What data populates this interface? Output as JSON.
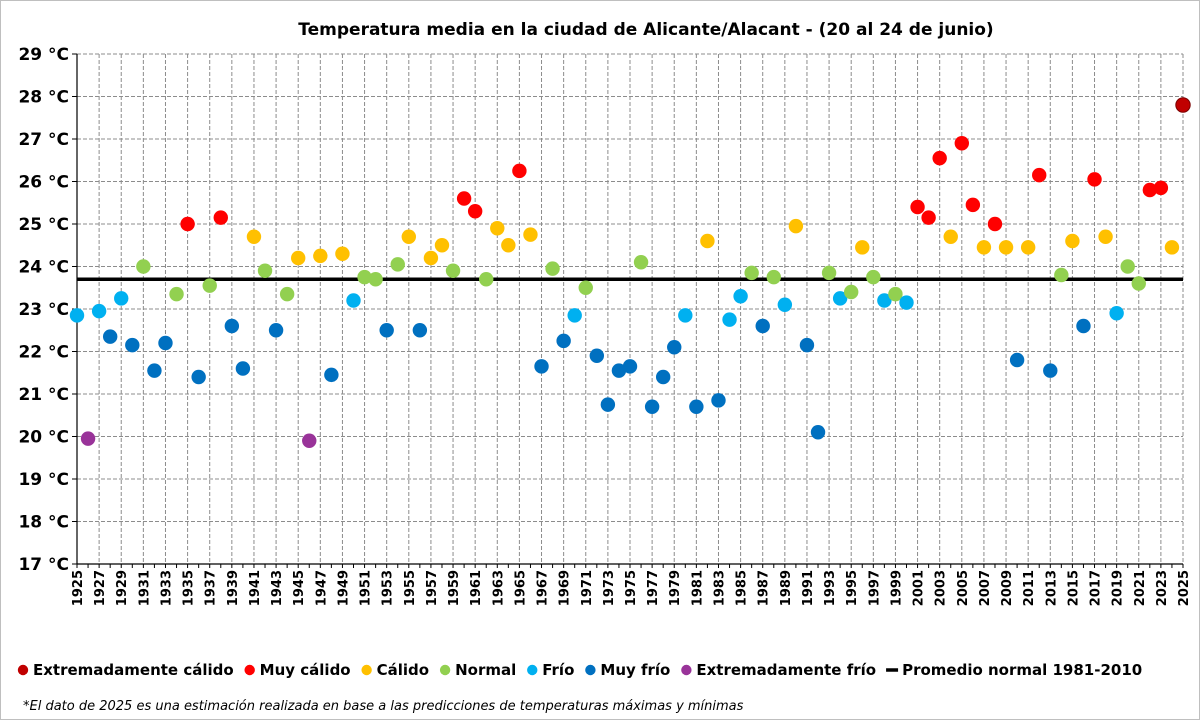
{
  "chart_data": {
    "type": "scatter",
    "title": "Temperatura media en la ciudad de Alicante/Alacant - (20 al 24 de junio)",
    "xlabel": "",
    "ylabel": "",
    "xlim": [
      1925,
      2025
    ],
    "ylim": [
      17,
      29
    ],
    "y_unit": "°C",
    "y_ticks": [
      17,
      18,
      19,
      20,
      21,
      22,
      23,
      24,
      25,
      26,
      27,
      28,
      29
    ],
    "y_tick_labels": [
      "17 °C",
      "18 °C",
      "19 °C",
      "20 °C",
      "21 °C",
      "22 °C",
      "23 °C",
      "24 °C",
      "25 °C",
      "26 °C",
      "27 °C",
      "28 °C",
      "29 °C"
    ],
    "x_tick_labels": [
      "1925",
      "1927",
      "1929",
      "1931",
      "1933",
      "1935",
      "1937",
      "1939",
      "1941",
      "1943",
      "1945",
      "1947",
      "1949",
      "1951",
      "1953",
      "1955",
      "1957",
      "1959",
      "1961",
      "1963",
      "1965",
      "1967",
      "1969",
      "1971",
      "1973",
      "1975",
      "1977",
      "1979",
      "1981",
      "1983",
      "1985",
      "1987",
      "1989",
      "1991",
      "1993",
      "1995",
      "1997",
      "1999",
      "2001",
      "2003",
      "2005",
      "2007",
      "2009",
      "2011",
      "2013",
      "2015",
      "2017",
      "2019",
      "2021",
      "2023",
      "2025"
    ],
    "grid": true,
    "legend_position": "bottom",
    "categories": [
      {
        "key": "ec",
        "name": "Extremadamente cálido",
        "color": "#c00000"
      },
      {
        "key": "mc",
        "name": "Muy cálido",
        "color": "#ff0000"
      },
      {
        "key": "c",
        "name": "Cálido",
        "color": "#ffc000"
      },
      {
        "key": "n",
        "name": "Normal",
        "color": "#92d050"
      },
      {
        "key": "f",
        "name": "Frío",
        "color": "#00b0f0"
      },
      {
        "key": "mf",
        "name": "Muy frío",
        "color": "#0070c0"
      },
      {
        "key": "ef",
        "name": "Extremadamente frío",
        "color": "#993399"
      }
    ],
    "reference_line": {
      "name": "Promedio normal 1981-2010",
      "value": 23.7,
      "color": "#000000"
    },
    "points": [
      {
        "x": 1925,
        "y": 22.85,
        "cat": "f"
      },
      {
        "x": 1926,
        "y": 19.95,
        "cat": "ef"
      },
      {
        "x": 1927,
        "y": 22.95,
        "cat": "f"
      },
      {
        "x": 1928,
        "y": 22.35,
        "cat": "mf"
      },
      {
        "x": 1929,
        "y": 23.25,
        "cat": "f"
      },
      {
        "x": 1930,
        "y": 22.15,
        "cat": "mf"
      },
      {
        "x": 1931,
        "y": 24.0,
        "cat": "n"
      },
      {
        "x": 1932,
        "y": 21.55,
        "cat": "mf"
      },
      {
        "x": 1933,
        "y": 22.2,
        "cat": "mf"
      },
      {
        "x": 1934,
        "y": 23.35,
        "cat": "n"
      },
      {
        "x": 1935,
        "y": 25.0,
        "cat": "mc"
      },
      {
        "x": 1936,
        "y": 21.4,
        "cat": "mf"
      },
      {
        "x": 1937,
        "y": 23.55,
        "cat": "n"
      },
      {
        "x": 1938,
        "y": 25.15,
        "cat": "mc"
      },
      {
        "x": 1939,
        "y": 22.6,
        "cat": "mf"
      },
      {
        "x": 1940,
        "y": 21.6,
        "cat": "mf"
      },
      {
        "x": 1941,
        "y": 24.7,
        "cat": "c"
      },
      {
        "x": 1942,
        "y": 23.9,
        "cat": "n"
      },
      {
        "x": 1943,
        "y": 22.5,
        "cat": "mf"
      },
      {
        "x": 1944,
        "y": 23.35,
        "cat": "n"
      },
      {
        "x": 1945,
        "y": 24.2,
        "cat": "c"
      },
      {
        "x": 1946,
        "y": 19.9,
        "cat": "ef"
      },
      {
        "x": 1947,
        "y": 24.25,
        "cat": "c"
      },
      {
        "x": 1948,
        "y": 21.45,
        "cat": "mf"
      },
      {
        "x": 1949,
        "y": 24.3,
        "cat": "c"
      },
      {
        "x": 1950,
        "y": 23.2,
        "cat": "f"
      },
      {
        "x": 1951,
        "y": 23.75,
        "cat": "n"
      },
      {
        "x": 1952,
        "y": 23.7,
        "cat": "n"
      },
      {
        "x": 1953,
        "y": 22.5,
        "cat": "mf"
      },
      {
        "x": 1954,
        "y": 24.05,
        "cat": "n"
      },
      {
        "x": 1955,
        "y": 24.7,
        "cat": "c"
      },
      {
        "x": 1956,
        "y": 22.5,
        "cat": "mf"
      },
      {
        "x": 1957,
        "y": 24.2,
        "cat": "c"
      },
      {
        "x": 1958,
        "y": 24.5,
        "cat": "c"
      },
      {
        "x": 1959,
        "y": 23.9,
        "cat": "n"
      },
      {
        "x": 1960,
        "y": 25.6,
        "cat": "mc"
      },
      {
        "x": 1961,
        "y": 25.3,
        "cat": "mc"
      },
      {
        "x": 1962,
        "y": 23.7,
        "cat": "n"
      },
      {
        "x": 1963,
        "y": 24.9,
        "cat": "c"
      },
      {
        "x": 1964,
        "y": 24.5,
        "cat": "c"
      },
      {
        "x": 1965,
        "y": 26.25,
        "cat": "mc"
      },
      {
        "x": 1966,
        "y": 24.75,
        "cat": "c"
      },
      {
        "x": 1967,
        "y": 21.65,
        "cat": "mf"
      },
      {
        "x": 1968,
        "y": 23.95,
        "cat": "n"
      },
      {
        "x": 1969,
        "y": 22.25,
        "cat": "mf"
      },
      {
        "x": 1970,
        "y": 22.85,
        "cat": "f"
      },
      {
        "x": 1971,
        "y": 23.5,
        "cat": "n"
      },
      {
        "x": 1972,
        "y": 21.9,
        "cat": "mf"
      },
      {
        "x": 1973,
        "y": 20.75,
        "cat": "mf"
      },
      {
        "x": 1974,
        "y": 21.55,
        "cat": "mf"
      },
      {
        "x": 1975,
        "y": 21.65,
        "cat": "mf"
      },
      {
        "x": 1976,
        "y": 24.1,
        "cat": "n"
      },
      {
        "x": 1977,
        "y": 20.7,
        "cat": "mf"
      },
      {
        "x": 1978,
        "y": 21.4,
        "cat": "mf"
      },
      {
        "x": 1979,
        "y": 22.1,
        "cat": "mf"
      },
      {
        "x": 1980,
        "y": 22.85,
        "cat": "f"
      },
      {
        "x": 1981,
        "y": 20.7,
        "cat": "mf"
      },
      {
        "x": 1982,
        "y": 24.6,
        "cat": "c"
      },
      {
        "x": 1983,
        "y": 20.85,
        "cat": "mf"
      },
      {
        "x": 1984,
        "y": 22.75,
        "cat": "f"
      },
      {
        "x": 1985,
        "y": 23.3,
        "cat": "f"
      },
      {
        "x": 1986,
        "y": 23.85,
        "cat": "n"
      },
      {
        "x": 1987,
        "y": 22.6,
        "cat": "mf"
      },
      {
        "x": 1988,
        "y": 23.75,
        "cat": "n"
      },
      {
        "x": 1989,
        "y": 23.1,
        "cat": "f"
      },
      {
        "x": 1990,
        "y": 24.95,
        "cat": "c"
      },
      {
        "x": 1991,
        "y": 22.15,
        "cat": "mf"
      },
      {
        "x": 1992,
        "y": 20.1,
        "cat": "mf"
      },
      {
        "x": 1993,
        "y": 23.85,
        "cat": "n"
      },
      {
        "x": 1994,
        "y": 23.25,
        "cat": "f"
      },
      {
        "x": 1995,
        "y": 23.4,
        "cat": "n"
      },
      {
        "x": 1996,
        "y": 24.45,
        "cat": "c"
      },
      {
        "x": 1997,
        "y": 23.75,
        "cat": "n"
      },
      {
        "x": 1998,
        "y": 23.2,
        "cat": "f"
      },
      {
        "x": 1999,
        "y": 23.35,
        "cat": "n"
      },
      {
        "x": 2000,
        "y": 23.15,
        "cat": "f"
      },
      {
        "x": 2001,
        "y": 25.4,
        "cat": "mc"
      },
      {
        "x": 2002,
        "y": 25.15,
        "cat": "mc"
      },
      {
        "x": 2003,
        "y": 26.55,
        "cat": "mc"
      },
      {
        "x": 2004,
        "y": 24.7,
        "cat": "c"
      },
      {
        "x": 2005,
        "y": 26.9,
        "cat": "mc"
      },
      {
        "x": 2006,
        "y": 25.45,
        "cat": "mc"
      },
      {
        "x": 2007,
        "y": 24.45,
        "cat": "c"
      },
      {
        "x": 2008,
        "y": 25.0,
        "cat": "mc"
      },
      {
        "x": 2009,
        "y": 24.45,
        "cat": "c"
      },
      {
        "x": 2010,
        "y": 21.8,
        "cat": "mf"
      },
      {
        "x": 2011,
        "y": 24.45,
        "cat": "c"
      },
      {
        "x": 2012,
        "y": 26.15,
        "cat": "mc"
      },
      {
        "x": 2013,
        "y": 21.55,
        "cat": "mf"
      },
      {
        "x": 2014,
        "y": 23.8,
        "cat": "n"
      },
      {
        "x": 2015,
        "y": 24.6,
        "cat": "c"
      },
      {
        "x": 2016,
        "y": 22.6,
        "cat": "mf"
      },
      {
        "x": 2017,
        "y": 26.05,
        "cat": "mc"
      },
      {
        "x": 2018,
        "y": 24.7,
        "cat": "c"
      },
      {
        "x": 2019,
        "y": 22.9,
        "cat": "f"
      },
      {
        "x": 2020,
        "y": 24.0,
        "cat": "n"
      },
      {
        "x": 2021,
        "y": 23.6,
        "cat": "n"
      },
      {
        "x": 2022,
        "y": 25.8,
        "cat": "mc"
      },
      {
        "x": 2023,
        "y": 25.85,
        "cat": "mc"
      },
      {
        "x": 2024,
        "y": 24.45,
        "cat": "c"
      },
      {
        "x": 2025,
        "y": 27.8,
        "cat": "ec"
      }
    ],
    "footnote": "*El dato de 2025 es una estimación realizada en base a las predicciones de temperaturas máximas y mínimas"
  }
}
